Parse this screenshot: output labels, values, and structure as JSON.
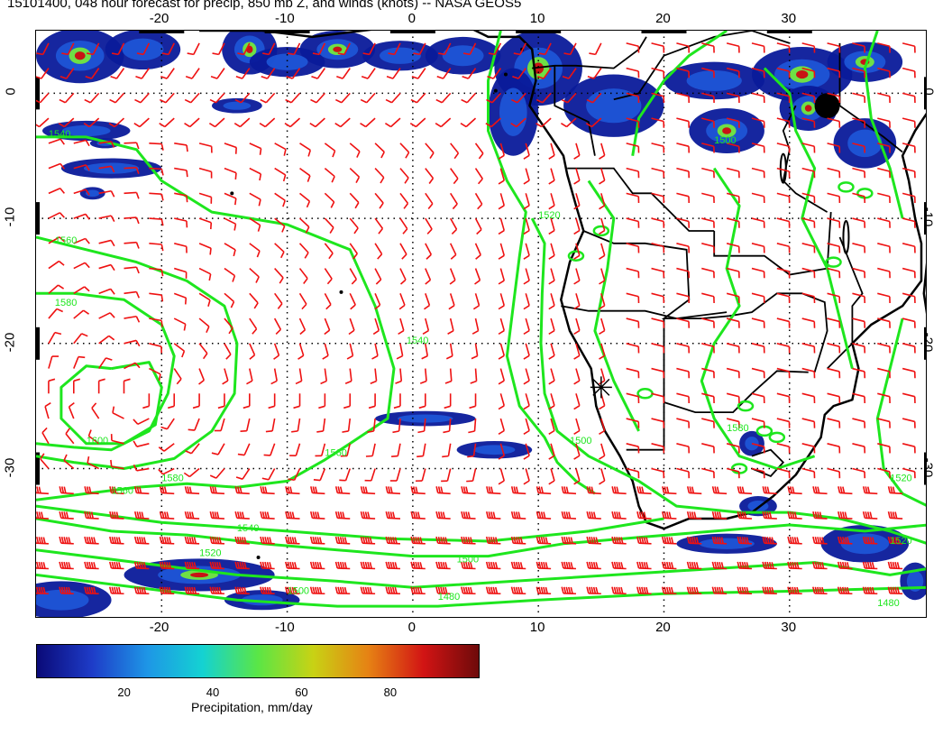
{
  "title": "15101400, 048 hour forecast for precip, 850 mb Z, and winds (knots) -- NASA GEOS5",
  "map": {
    "lon_range": [
      -30,
      41
    ],
    "lat_range": [
      -42,
      5
    ],
    "lon_ticks": [
      "-20",
      "-10",
      "0",
      "10",
      "20",
      "30"
    ],
    "lat_ticks": [
      "0",
      "-10",
      "-20",
      "-30"
    ],
    "grid": true,
    "colors": {
      "contour": "#1ee61e",
      "wind_barb": "#ee1111",
      "coastline": "#000000",
      "precip_light": "#0a1a9a",
      "precip_mid": "#1e5adc",
      "precip_high": "#6ee046",
      "precip_max": "#c81414"
    },
    "contour_labels": [
      {
        "text": "1540",
        "lon": -29,
        "lat": -3.5
      },
      {
        "text": "1560",
        "lon": -28.5,
        "lat": -12
      },
      {
        "text": "1580",
        "lon": -28.5,
        "lat": -17
      },
      {
        "text": "1600",
        "lon": -26,
        "lat": -28
      },
      {
        "text": "1540",
        "lon": -0.5,
        "lat": -20
      },
      {
        "text": "1560",
        "lon": -7,
        "lat": -29
      },
      {
        "text": "1580",
        "lon": -20,
        "lat": -31
      },
      {
        "text": "1520",
        "lon": 10,
        "lat": -10
      },
      {
        "text": "1500",
        "lon": 12.5,
        "lat": -28
      },
      {
        "text": "1500",
        "lon": 24,
        "lat": -4
      },
      {
        "text": "1580",
        "lon": 25,
        "lat": -27
      },
      {
        "text": "1520",
        "lon": 38,
        "lat": -31
      },
      {
        "text": "1520",
        "lon": 38,
        "lat": -36
      },
      {
        "text": "1480",
        "lon": 37,
        "lat": -41
      },
      {
        "text": "1480",
        "lon": 2,
        "lat": -40.5
      },
      {
        "text": "1500",
        "lon": 3.5,
        "lat": -37.5
      },
      {
        "text": "1500",
        "lon": -10,
        "lat": -40
      },
      {
        "text": "1520",
        "lon": -17,
        "lat": -37
      },
      {
        "text": "1540",
        "lon": -14,
        "lat": -35
      },
      {
        "text": "1560",
        "lon": -24,
        "lat": -32
      }
    ],
    "station_marker": {
      "lon": 15,
      "lat": -23.5
    }
  },
  "colorbar": {
    "ticks": [
      "20",
      "40",
      "60",
      "80"
    ],
    "range": [
      0,
      100
    ],
    "colors": [
      "#0a0a78",
      "#1e3cc8",
      "#1e96e6",
      "#14d2d2",
      "#5ae646",
      "#c8d214",
      "#e68214",
      "#d21414",
      "#6e0a0a"
    ],
    "title": "Precipitation, mm/day"
  }
}
